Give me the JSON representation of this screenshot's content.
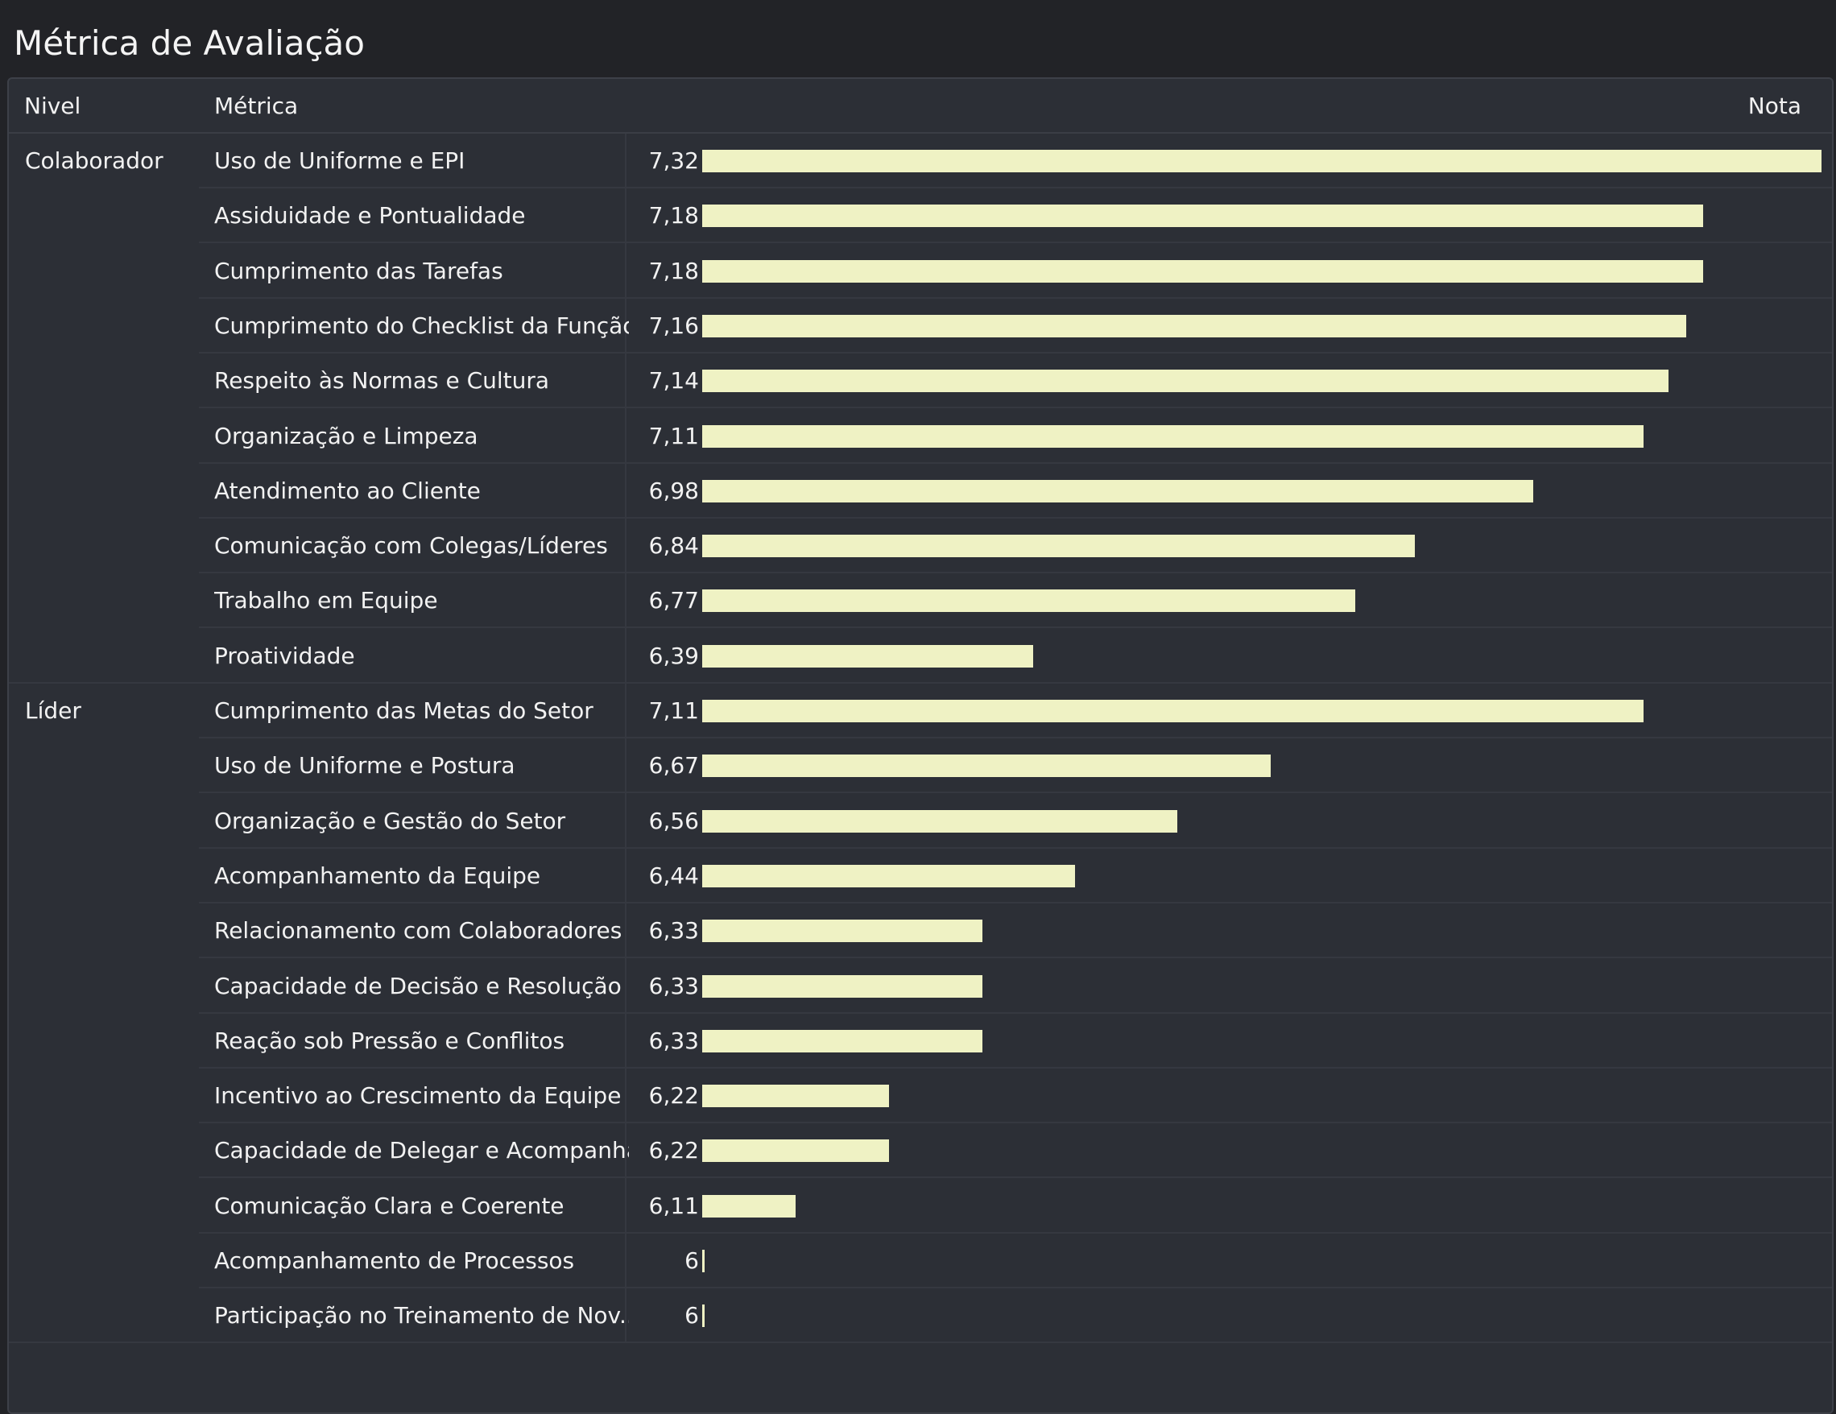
{
  "title": "Métrica de Avaliação",
  "columns": {
    "level": "Nivel",
    "metric": "Métrica",
    "score": "Nota"
  },
  "colors": {
    "background": "#222327",
    "panel": "#2c2f36",
    "bar": "#eff2c4",
    "text": "#f2f2f2"
  },
  "scale": {
    "min": 6,
    "max": 7.32
  },
  "groups": [
    {
      "level": "Colaborador",
      "rows": [
        {
          "metric": "Uso de Uniforme e EPI",
          "value_label": "7,32",
          "value": 7.32
        },
        {
          "metric": "Assiduidade e Pontualidade",
          "value_label": "7,18",
          "value": 7.18
        },
        {
          "metric": "Cumprimento das Tarefas",
          "value_label": "7,18",
          "value": 7.18
        },
        {
          "metric": "Cumprimento do Checklist da Função",
          "value_label": "7,16",
          "value": 7.16
        },
        {
          "metric": "Respeito às Normas e Cultura",
          "value_label": "7,14",
          "value": 7.14
        },
        {
          "metric": "Organização e Limpeza",
          "value_label": "7,11",
          "value": 7.11
        },
        {
          "metric": "Atendimento ao Cliente",
          "value_label": "6,98",
          "value": 6.98
        },
        {
          "metric": "Comunicação com Colegas/Líderes",
          "value_label": "6,84",
          "value": 6.84
        },
        {
          "metric": "Trabalho em Equipe",
          "value_label": "6,77",
          "value": 6.77
        },
        {
          "metric": "Proatividade",
          "value_label": "6,39",
          "value": 6.39
        }
      ]
    },
    {
      "level": "Líder",
      "rows": [
        {
          "metric": "Cumprimento das Metas do Setor",
          "value_label": "7,11",
          "value": 7.11
        },
        {
          "metric": "Uso de Uniforme e Postura",
          "value_label": "6,67",
          "value": 6.67
        },
        {
          "metric": "Organização e Gestão do Setor",
          "value_label": "6,56",
          "value": 6.56
        },
        {
          "metric": "Acompanhamento da Equipe",
          "value_label": "6,44",
          "value": 6.44
        },
        {
          "metric": "Relacionamento com Colaboradores",
          "value_label": "6,33",
          "value": 6.33
        },
        {
          "metric": "Capacidade de Decisão e Resolução",
          "value_label": "6,33",
          "value": 6.33
        },
        {
          "metric": "Reação sob Pressão e Conflitos",
          "value_label": "6,33",
          "value": 6.33
        },
        {
          "metric": "Incentivo ao Crescimento da Equipe",
          "value_label": "6,22",
          "value": 6.22
        },
        {
          "metric": "Capacidade de Delegar e Acompanhar",
          "value_label": "6,22",
          "value": 6.22
        },
        {
          "metric": "Comunicação Clara e Coerente",
          "value_label": "6,11",
          "value": 6.11
        },
        {
          "metric": "Acompanhamento de Processos",
          "value_label": "6",
          "value": 6
        },
        {
          "metric": "Participação no Treinamento de Nov...",
          "value_label": "6",
          "value": 6
        }
      ]
    }
  ]
}
